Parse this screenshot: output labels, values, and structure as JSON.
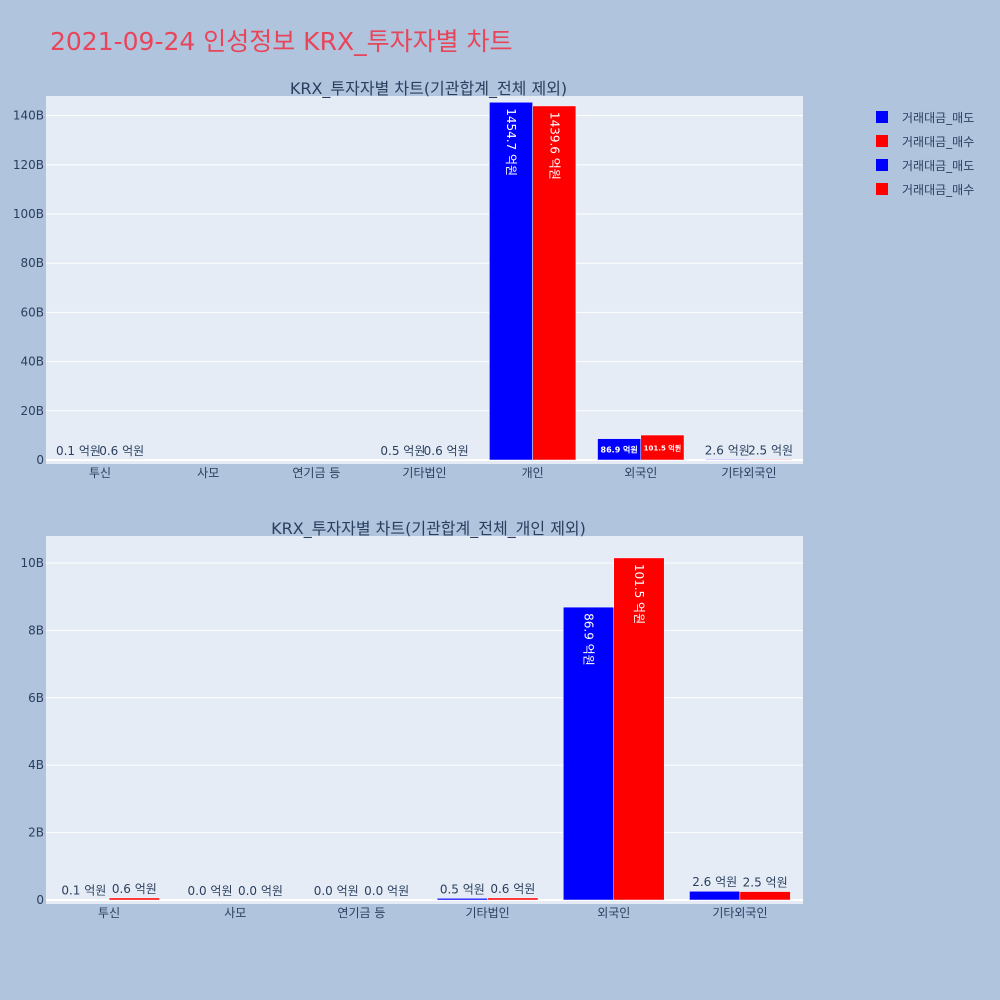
{
  "page": {
    "title": "2021-09-24 인성정보 KRX_투자자별 차트"
  },
  "colors": {
    "sell": "#0000ff",
    "buy": "#ff0000",
    "plot_bg": "#e5ecf6",
    "page_bg": "#b0c4de",
    "title": "#e8455a"
  },
  "legend": {
    "entries": [
      {
        "label": "거래대금_매도",
        "color": "#0000ff"
      },
      {
        "label": "거래대금_매수",
        "color": "#ff0000"
      },
      {
        "label": "거래대금_매도",
        "color": "#0000ff"
      },
      {
        "label": "거래대금_매수",
        "color": "#ff0000"
      }
    ]
  },
  "chart_data": [
    {
      "type": "bar",
      "title": "KRX_투자자별 차트(기관합계_전체 제외)",
      "categories": [
        "투신",
        "사모",
        "연기금 등",
        "기타법인",
        "개인",
        "외국인",
        "기타외국인"
      ],
      "ylim": [
        0,
        148
      ],
      "yunit": "B",
      "yticks": [
        0,
        20,
        40,
        60,
        80,
        100,
        120,
        140
      ],
      "ytick_labels": [
        "0",
        "20B",
        "40B",
        "60B",
        "80B",
        "100B",
        "120B",
        "140B"
      ],
      "series": [
        {
          "name": "거래대금_매도",
          "color": "#0000ff",
          "values": [
            0.01,
            0.0,
            0.0,
            0.05,
            145.47,
            8.69,
            0.26
          ],
          "labels": [
            "0.1 억원",
            "",
            "",
            "0.5 억원",
            "1454.7 억원",
            "86.9 억원",
            "2.6 억원"
          ]
        },
        {
          "name": "거래대금_매수",
          "color": "#ff0000",
          "values": [
            0.06,
            0.0,
            0.0,
            0.06,
            143.96,
            10.15,
            0.25
          ],
          "labels": [
            "0.6 억원",
            "",
            "",
            "0.6 억원",
            "1439.6 억원",
            "101.5 억원",
            "2.5 억원"
          ]
        }
      ],
      "grid": true
    },
    {
      "type": "bar",
      "title": "KRX_투자자별 차트(기관합계_전체_개인 제외)",
      "categories": [
        "투신",
        "사모",
        "연기금 등",
        "기타법인",
        "외국인",
        "기타외국인"
      ],
      "ylim": [
        0,
        10.8
      ],
      "yunit": "B",
      "yticks": [
        0,
        2,
        4,
        6,
        8,
        10
      ],
      "ytick_labels": [
        "0",
        "2B",
        "4B",
        "6B",
        "8B",
        "10B"
      ],
      "series": [
        {
          "name": "거래대금_매도",
          "color": "#0000ff",
          "values": [
            0.01,
            0.0,
            0.0,
            0.05,
            8.69,
            0.26
          ],
          "labels": [
            "0.1 억원",
            "0.0 억원",
            "0.0 억원",
            "0.5 억원",
            "86.9 억원",
            "2.6 억원"
          ]
        },
        {
          "name": "거래대금_매수",
          "color": "#ff0000",
          "values": [
            0.06,
            0.0,
            0.0,
            0.06,
            10.15,
            0.25
          ],
          "labels": [
            "0.6 억원",
            "0.0 억원",
            "0.0 억원",
            "0.6 억원",
            "101.5 억원",
            "2.5 억원"
          ]
        }
      ],
      "grid": true
    }
  ]
}
